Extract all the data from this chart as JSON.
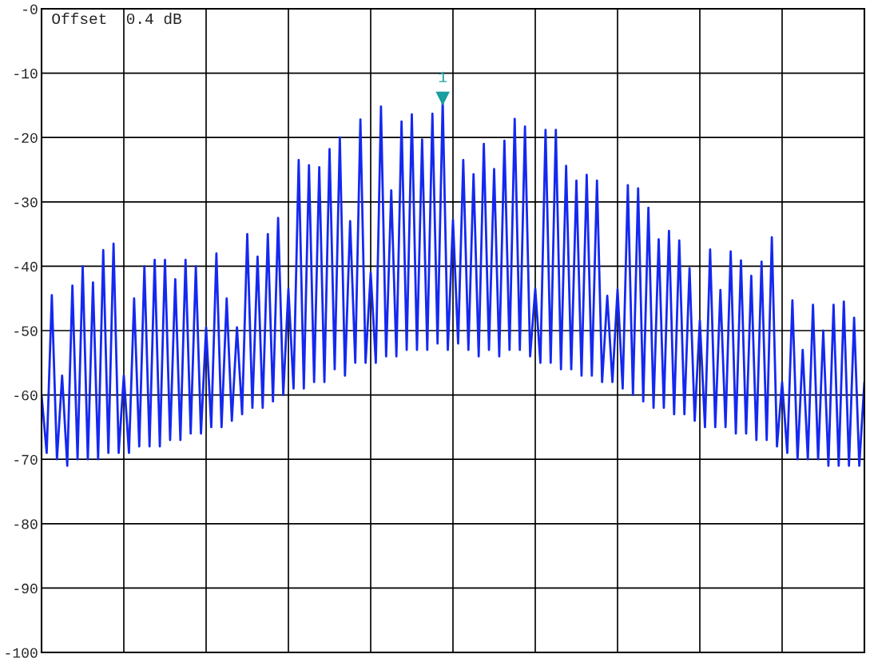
{
  "chart_data": {
    "type": "line",
    "annotations": [
      "Offset  0.4 dB",
      {
        "text": "1",
        "y": -14.3
      }
    ],
    "categories": [
      null,
      null,
      null,
      null,
      null,
      null,
      null,
      null,
      null,
      null,
      null,
      null,
      null,
      null,
      null,
      null,
      null,
      null,
      null,
      null,
      null,
      null,
      null,
      null,
      null,
      null,
      null,
      null,
      null,
      null,
      null,
      null,
      null,
      null,
      null,
      null,
      null,
      null,
      null,
      null,
      null,
      null,
      null,
      null,
      null,
      null,
      null,
      null,
      null,
      null,
      null,
      null,
      null,
      null,
      null,
      null,
      null,
      null,
      null,
      null,
      null,
      null,
      null,
      null,
      null,
      null,
      null,
      null,
      null,
      null,
      null,
      null,
      null,
      null,
      null,
      null,
      null,
      null,
      null,
      null,
      null,
      null,
      null,
      null,
      null,
      null,
      null,
      null,
      null,
      null,
      null,
      null,
      null,
      null,
      null,
      null,
      null,
      null,
      null,
      null,
      null,
      null,
      null,
      null,
      null,
      null,
      null,
      null,
      null,
      null,
      null,
      null,
      null,
      null,
      null,
      null,
      null,
      null,
      null,
      null,
      null,
      null,
      null,
      null,
      null,
      null,
      null,
      null,
      null,
      null,
      null,
      null,
      null,
      null,
      null,
      null,
      null,
      null,
      null,
      null,
      null,
      null,
      null,
      null,
      null,
      null,
      null,
      null,
      null,
      null,
      null,
      null,
      null,
      null,
      null,
      null,
      null,
      null,
      null,
      null,
      null
    ],
    "ylim": [
      -100,
      0
    ],
    "yticks": [
      {
        "value": 0,
        "label": "-0"
      },
      {
        "value": -10,
        "label": "-10"
      },
      {
        "value": -20,
        "label": "-20"
      },
      {
        "value": -30,
        "label": "-30"
      },
      {
        "value": -40,
        "label": "-40"
      },
      {
        "value": -50,
        "label": "-50"
      },
      {
        "value": -60,
        "label": "-60"
      },
      {
        "value": -70,
        "label": "-70"
      },
      {
        "value": -80,
        "label": "-80"
      },
      {
        "value": -90,
        "label": "-90"
      },
      {
        "value": -100,
        "label": "-100"
      }
    ],
    "tick_labels": "y",
    "grid": true,
    "marker": "none",
    "line_style": "solid",
    "series": [
      {
        "color": "#1428f0",
        "values": [
          -60,
          -69,
          -44.5,
          -70,
          -57,
          -71,
          -43,
          -70,
          -40,
          -70,
          -42.5,
          -70,
          -37.5,
          -69,
          -36.5,
          -69,
          -57,
          -69,
          -45,
          -68,
          -40,
          -68,
          -39,
          -68,
          -39,
          -67,
          -42,
          -67,
          -39,
          -66,
          -40,
          -66,
          -49.5,
          -65,
          -38,
          -65,
          -45,
          -64,
          -49.5,
          -63,
          -35,
          -62,
          -38.5,
          -62,
          -35,
          -61,
          -32.5,
          -60,
          -43.5,
          -59,
          -23.5,
          -59,
          -24.3,
          -58,
          -24.6,
          -58,
          -21.8,
          -56,
          -20,
          -57,
          -33,
          -55,
          -17.2,
          -55,
          -41,
          -55,
          -15.2,
          -54,
          -28.2,
          -54,
          -17.5,
          -53,
          -16.4,
          -53,
          -20.3,
          -53,
          -16.3,
          -52,
          -14.3,
          -53,
          -32.8,
          -52,
          -23.5,
          -53,
          -25.7,
          -54,
          -21,
          -53,
          -24.9,
          -54,
          -20.5,
          -53,
          -17.1,
          -53,
          -18.3,
          -54,
          -43.5,
          -55,
          -18.8,
          -55,
          -18.8,
          -56,
          -24.4,
          -56,
          -26.7,
          -57,
          -25.8,
          -57,
          -26.7,
          -58,
          -44.6,
          -58,
          -43.6,
          -59,
          -27.4,
          -60,
          -27.9,
          -61,
          -30.9,
          -62,
          -35.8,
          -62,
          -34.5,
          -63,
          -36,
          -63,
          -40.3,
          -64,
          -48.4,
          -65,
          -37.4,
          -65,
          -43.7,
          -65,
          -37.7,
          -66,
          -39.1,
          -66,
          -41.5,
          -67,
          -39.3,
          -67,
          -35.5,
          -68,
          -58,
          -69,
          -45.3,
          -70,
          -53,
          -70,
          -46,
          -70,
          -50,
          -71,
          -46,
          -71,
          -45.5,
          -71,
          -48,
          -71,
          -58
        ]
      }
    ]
  }
}
